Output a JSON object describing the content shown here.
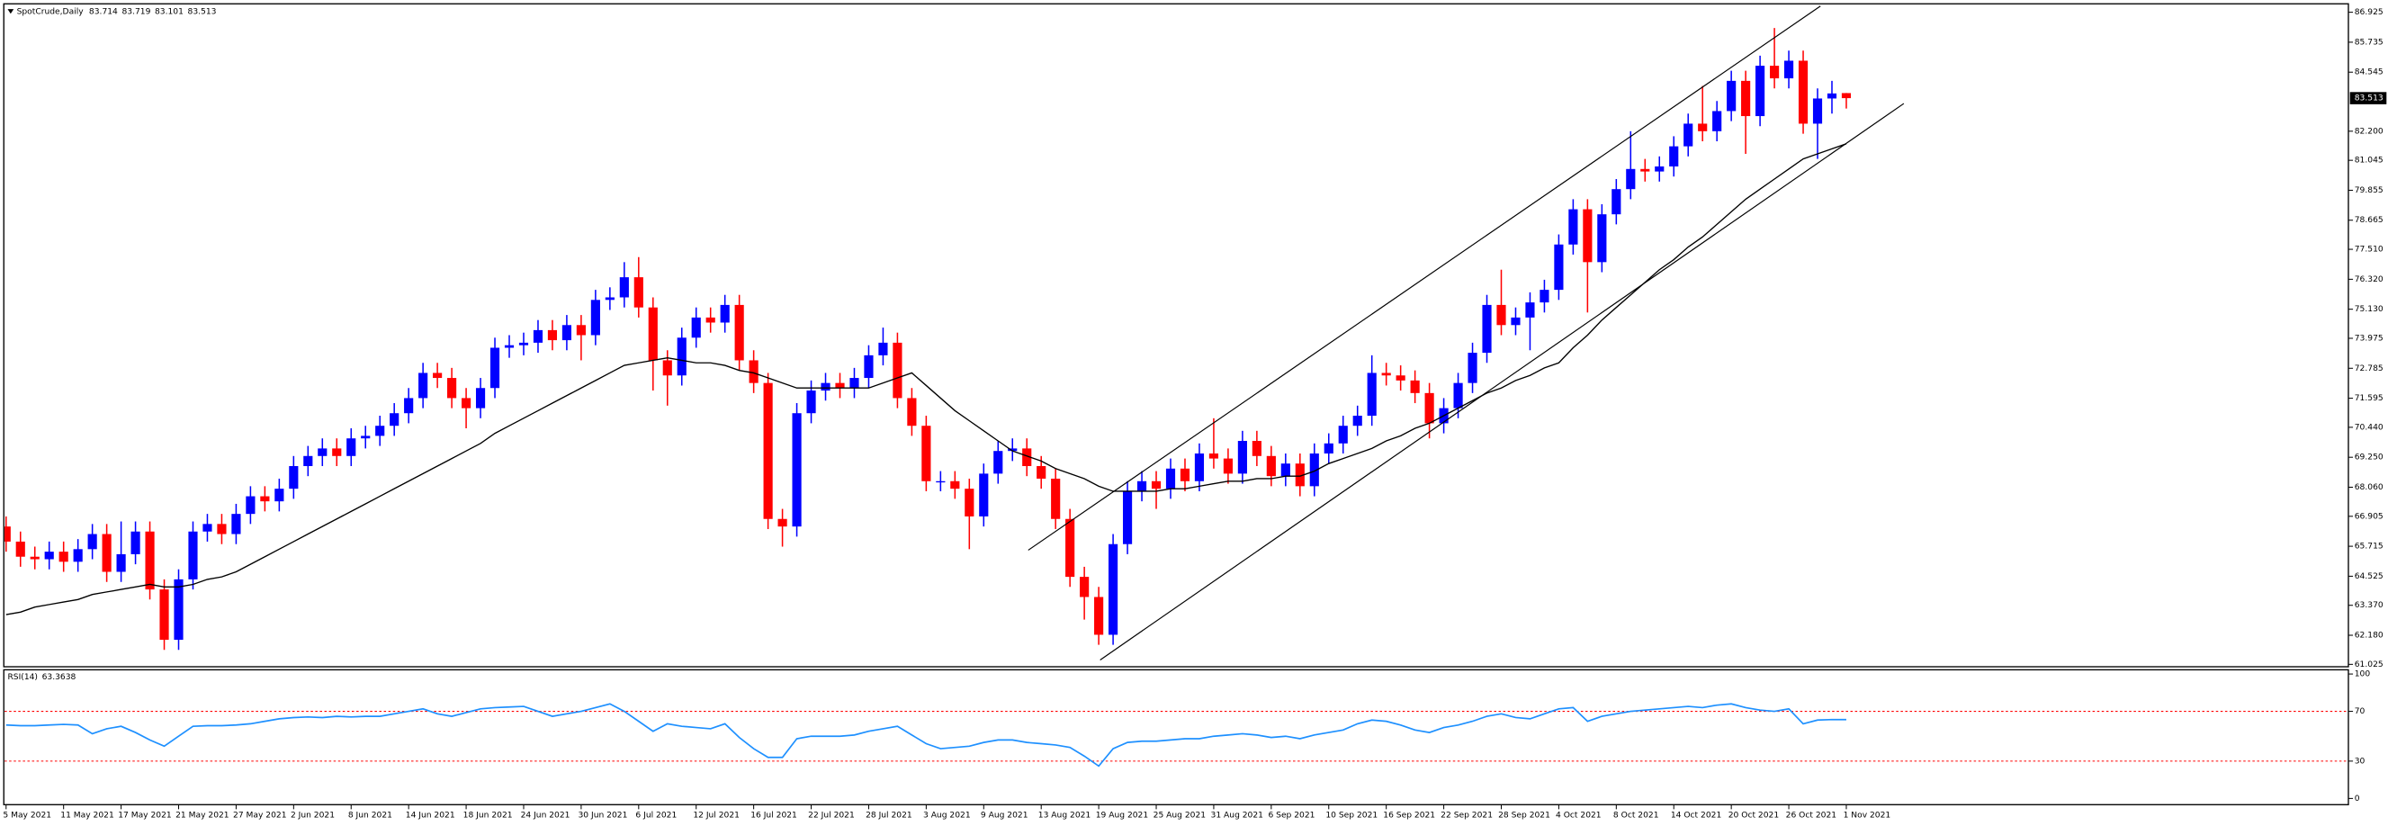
{
  "chart_data": {
    "type": "candlestick",
    "title": "SpotCrude,Daily",
    "up_color": "#0000ff",
    "down_color": "#ff0000",
    "categories": [
      "5 May 2021",
      null,
      null,
      null,
      "11 May 2021",
      null,
      null,
      null,
      "17 May 2021",
      null,
      null,
      null,
      "21 May 2021",
      null,
      null,
      null,
      "27 May 2021",
      null,
      null,
      null,
      "2 Jun 2021",
      null,
      null,
      null,
      "8 Jun 2021",
      null,
      null,
      null,
      "14 Jun 2021",
      null,
      null,
      null,
      "18 Jun 2021",
      null,
      null,
      null,
      "24 Jun 2021",
      null,
      null,
      null,
      "30 Jun 2021",
      null,
      null,
      null,
      "6 Jul 2021",
      null,
      null,
      null,
      "12 Jul 2021",
      null,
      null,
      null,
      "16 Jul 2021",
      null,
      null,
      null,
      "22 Jul 2021",
      null,
      null,
      null,
      "28 Jul 2021",
      null,
      null,
      null,
      "3 Aug 2021",
      null,
      null,
      null,
      "9 Aug 2021",
      null,
      null,
      null,
      "13 Aug 2021",
      null,
      null,
      null,
      "19 Aug 2021",
      null,
      null,
      null,
      "25 Aug 2021",
      null,
      null,
      null,
      "31 Aug 2021",
      null,
      null,
      null,
      "6 Sep 2021",
      null,
      null,
      null,
      "10 Sep 2021",
      null,
      null,
      null,
      "16 Sep 2021",
      null,
      null,
      null,
      "22 Sep 2021",
      null,
      null,
      null,
      "28 Sep 2021",
      null,
      null,
      null,
      "4 Oct 2021",
      null,
      null,
      null,
      "8 Oct 2021",
      null,
      null,
      null,
      "14 Oct 2021",
      null,
      null,
      null,
      "20 Oct 2021",
      null,
      null,
      null,
      "26 Oct 2021",
      null,
      null,
      null,
      "1 Nov 2021"
    ],
    "open": [
      66.5,
      65.9,
      65.3,
      65.2,
      65.5,
      65.1,
      65.6,
      66.2,
      64.7,
      65.4,
      66.3,
      64.0,
      62.0,
      64.4,
      66.3,
      66.6,
      66.2,
      67.0,
      67.7,
      67.5,
      68.0,
      68.9,
      69.3,
      69.6,
      69.3,
      70.0,
      70.1,
      70.5,
      71.0,
      71.6,
      72.6,
      72.4,
      71.6,
      71.2,
      72.0,
      73.6,
      73.7,
      73.8,
      74.3,
      73.9,
      74.5,
      74.1,
      75.5,
      75.6,
      76.4,
      75.2,
      73.1,
      72.5,
      74.0,
      74.8,
      74.6,
      75.3,
      73.1,
      72.2,
      66.8,
      66.5,
      71.0,
      71.9,
      72.2,
      72.0,
      72.4,
      73.3,
      73.8,
      71.6,
      70.5,
      68.3,
      68.3,
      68.0,
      66.9,
      68.6,
      69.5,
      69.6,
      68.9,
      68.4,
      66.8,
      64.5,
      63.7,
      62.2,
      65.8,
      67.9,
      68.3,
      68.0,
      68.8,
      68.3,
      69.4,
      69.2,
      68.6,
      69.9,
      69.3,
      68.5,
      69.0,
      68.1,
      69.4,
      69.8,
      70.5,
      70.9,
      72.6,
      72.5,
      72.3,
      71.8,
      70.6,
      71.2,
      72.2,
      73.4,
      75.3,
      74.5,
      74.8,
      75.4,
      75.9,
      77.7,
      79.1,
      77.0,
      78.9,
      79.9,
      80.7,
      80.6,
      80.8,
      81.6,
      82.5,
      82.2,
      83.0,
      84.2,
      82.8,
      84.8,
      84.3,
      85.0,
      82.5,
      83.5,
      83.714
    ],
    "high": [
      66.9,
      66.3,
      65.7,
      65.9,
      65.9,
      66.0,
      66.6,
      66.6,
      66.7,
      66.7,
      66.7,
      64.4,
      64.8,
      66.7,
      67.0,
      67.0,
      67.4,
      68.1,
      68.1,
      68.4,
      69.3,
      69.7,
      70.0,
      70.0,
      70.4,
      70.5,
      70.9,
      71.4,
      72.0,
      73.0,
      73.0,
      72.8,
      72.0,
      72.4,
      74.0,
      74.1,
      74.2,
      74.7,
      74.7,
      74.9,
      74.9,
      75.9,
      76.0,
      77.0,
      77.2,
      75.6,
      73.5,
      74.4,
      75.2,
      75.2,
      75.7,
      75.7,
      73.5,
      72.6,
      67.2,
      71.4,
      72.3,
      72.6,
      72.6,
      72.8,
      73.7,
      74.4,
      74.2,
      72.0,
      70.9,
      68.7,
      68.7,
      68.4,
      69.0,
      69.9,
      70.0,
      70.0,
      69.3,
      68.8,
      67.2,
      64.9,
      64.1,
      66.2,
      68.3,
      68.7,
      68.7,
      69.2,
      69.2,
      69.8,
      70.8,
      69.6,
      70.3,
      70.3,
      69.7,
      69.4,
      69.4,
      69.8,
      70.2,
      70.9,
      71.3,
      73.3,
      73.0,
      72.9,
      72.7,
      72.2,
      71.6,
      72.6,
      73.8,
      75.7,
      76.7,
      75.2,
      75.8,
      76.3,
      78.1,
      79.5,
      79.5,
      79.3,
      80.3,
      82.2,
      81.1,
      81.2,
      82.0,
      82.9,
      84.0,
      83.4,
      84.6,
      84.6,
      85.2,
      86.3,
      85.4,
      85.4,
      83.9,
      84.2,
      83.719
    ],
    "low": [
      65.5,
      64.9,
      64.8,
      64.8,
      64.7,
      64.7,
      65.2,
      64.3,
      64.3,
      65.0,
      63.6,
      61.6,
      61.6,
      64.0,
      65.9,
      65.8,
      65.8,
      66.6,
      67.1,
      67.1,
      67.6,
      68.5,
      68.9,
      68.9,
      68.9,
      69.6,
      69.7,
      70.1,
      70.6,
      71.2,
      72.0,
      71.2,
      70.4,
      70.8,
      71.6,
      73.2,
      73.3,
      73.4,
      73.5,
      73.5,
      73.1,
      73.7,
      75.1,
      75.2,
      74.8,
      71.9,
      71.3,
      72.1,
      73.6,
      74.2,
      74.2,
      72.7,
      71.8,
      66.4,
      65.7,
      66.1,
      70.6,
      71.5,
      71.6,
      71.6,
      72.0,
      72.9,
      71.2,
      70.1,
      67.9,
      67.9,
      67.6,
      65.6,
      66.5,
      68.2,
      69.1,
      68.5,
      68.0,
      66.4,
      64.1,
      62.8,
      61.8,
      61.8,
      65.4,
      67.5,
      67.2,
      67.6,
      67.9,
      67.9,
      68.8,
      68.2,
      68.2,
      68.9,
      68.1,
      68.1,
      67.7,
      67.7,
      69.0,
      69.4,
      70.1,
      70.5,
      72.1,
      71.9,
      71.4,
      70.0,
      70.2,
      70.8,
      71.8,
      73.0,
      74.1,
      74.1,
      73.5,
      75.0,
      75.5,
      77.3,
      75.0,
      76.6,
      78.5,
      79.5,
      80.2,
      80.2,
      80.4,
      81.2,
      81.8,
      81.8,
      82.6,
      81.3,
      82.4,
      83.9,
      83.9,
      82.1,
      81.1,
      82.9,
      83.101
    ],
    "close": [
      65.9,
      65.3,
      65.2,
      65.5,
      65.1,
      65.6,
      66.2,
      64.7,
      65.4,
      66.3,
      64.0,
      62.0,
      64.4,
      66.3,
      66.6,
      66.2,
      67.0,
      67.7,
      67.5,
      68.0,
      68.9,
      69.3,
      69.6,
      69.3,
      70.0,
      70.1,
      70.5,
      71.0,
      71.6,
      72.6,
      72.4,
      71.6,
      71.2,
      72.0,
      73.6,
      73.7,
      73.8,
      74.3,
      73.9,
      74.5,
      74.1,
      75.5,
      75.6,
      76.4,
      75.2,
      73.1,
      72.5,
      74.0,
      74.8,
      74.6,
      75.3,
      73.1,
      72.2,
      66.8,
      66.5,
      71.0,
      71.9,
      72.2,
      72.0,
      72.4,
      73.3,
      73.8,
      71.6,
      70.5,
      68.3,
      68.3,
      68.0,
      66.9,
      68.6,
      69.5,
      69.6,
      68.9,
      68.4,
      66.8,
      64.5,
      63.7,
      62.2,
      65.8,
      67.9,
      68.3,
      68.0,
      68.8,
      68.3,
      69.4,
      69.2,
      68.6,
      69.9,
      69.3,
      68.5,
      69.0,
      68.1,
      69.4,
      69.8,
      70.5,
      70.9,
      72.6,
      72.5,
      72.3,
      71.8,
      70.6,
      71.2,
      72.2,
      73.4,
      75.3,
      74.5,
      74.8,
      75.4,
      75.9,
      77.7,
      79.1,
      77.0,
      78.9,
      79.9,
      80.7,
      80.6,
      80.8,
      81.6,
      82.5,
      82.2,
      83.0,
      84.2,
      82.8,
      84.8,
      84.3,
      85.0,
      82.5,
      83.5,
      83.7,
      83.513
    ],
    "ylim": [
      60.96,
      87.23
    ],
    "yticks": [
      86.925,
      85.735,
      84.545,
      {
        "value": 82.2,
        "label": "82.200"
      },
      81.045,
      79.855,
      78.665,
      {
        "value": 77.51,
        "label": "77.510"
      },
      {
        "value": 76.32,
        "label": "76.320"
      },
      {
        "value": 75.13,
        "label": "75.130"
      },
      73.975,
      72.785,
      71.595,
      {
        "value": 70.44,
        "label": "70.440"
      },
      {
        "value": 69.25,
        "label": "69.250"
      },
      {
        "value": 68.06,
        "label": "68.060"
      },
      66.905,
      65.715,
      64.525,
      {
        "value": 63.37,
        "label": "63.370"
      },
      {
        "value": 62.18,
        "label": "62.180"
      },
      61.025
    ],
    "ma": {
      "color": "#000000",
      "values": [
        63.0,
        63.1,
        63.3,
        63.4,
        63.5,
        63.6,
        63.8,
        63.9,
        64.0,
        64.1,
        64.2,
        64.1,
        64.1,
        64.2,
        64.4,
        64.5,
        64.7,
        65.0,
        65.3,
        65.6,
        65.9,
        66.2,
        66.5,
        66.8,
        67.1,
        67.4,
        67.7,
        68.0,
        68.3,
        68.6,
        68.9,
        69.2,
        69.5,
        69.8,
        70.2,
        70.5,
        70.8,
        71.1,
        71.4,
        71.7,
        72.0,
        72.3,
        72.6,
        72.9,
        73.0,
        73.1,
        73.2,
        73.1,
        73.0,
        73.0,
        72.9,
        72.7,
        72.6,
        72.4,
        72.2,
        72.0,
        72.0,
        72.0,
        72.0,
        72.0,
        72.0,
        72.2,
        72.4,
        72.6,
        72.1,
        71.6,
        71.1,
        70.7,
        70.3,
        69.9,
        69.5,
        69.3,
        69.1,
        68.8,
        68.6,
        68.4,
        68.1,
        67.9,
        67.9,
        67.9,
        67.9,
        68.0,
        68.0,
        68.1,
        68.2,
        68.3,
        68.3,
        68.4,
        68.4,
        68.5,
        68.5,
        68.7,
        69.0,
        69.2,
        69.4,
        69.6,
        69.9,
        70.1,
        70.4,
        70.6,
        70.9,
        71.2,
        71.5,
        71.8,
        72.0,
        72.3,
        72.5,
        72.8,
        73.0,
        73.6,
        74.1,
        74.7,
        75.2,
        75.7,
        76.2,
        76.7,
        77.1,
        77.6,
        78.0,
        78.5,
        79.0,
        79.5,
        79.9,
        80.3,
        80.7,
        81.1,
        81.3,
        81.5,
        81.7
      ]
    },
    "trendlines": [
      {
        "color": "#000000",
        "x": [
          71.1,
          126.2
        ],
        "y": [
          65.56,
          87.17
        ]
      },
      {
        "color": "#000000",
        "x": [
          76.1,
          132.0
        ],
        "y": [
          61.2,
          83.3
        ]
      }
    ],
    "rsi": {
      "name": "RSI(14)",
      "color": "#1e90ff",
      "values": [
        59,
        58.5,
        58.5,
        59,
        59.5,
        59,
        52,
        56,
        58,
        53,
        47,
        42,
        50,
        58,
        58.5,
        58.5,
        59,
        60,
        62,
        64,
        65,
        65.5,
        65,
        66,
        65.5,
        66,
        66,
        68,
        70,
        72,
        68,
        66,
        69,
        72,
        73,
        73.5,
        74,
        70,
        66,
        68,
        70,
        73,
        76,
        70,
        62,
        54,
        60,
        58,
        57,
        56,
        60,
        49,
        40,
        33,
        33,
        48,
        50,
        50,
        50,
        51,
        54,
        56,
        58,
        51,
        44,
        40,
        41,
        42,
        45,
        47,
        47,
        45,
        44,
        43,
        41,
        34,
        26,
        40,
        45,
        46,
        46,
        47,
        48,
        48,
        50,
        51,
        52,
        51,
        49,
        50,
        48,
        51,
        53,
        55,
        60,
        63,
        62,
        59,
        55,
        53,
        57,
        59,
        62,
        66,
        68,
        65,
        64,
        68,
        72,
        73,
        62,
        66,
        68,
        70,
        71,
        72,
        73,
        74,
        73,
        75,
        76,
        73,
        71,
        70,
        72,
        60,
        63,
        63.4,
        63.3638
      ],
      "ylim": [
        -5,
        104
      ],
      "yticks": [
        100,
        70,
        30,
        0
      ],
      "levels": [
        70,
        30
      ],
      "level_color": "#ff0000"
    }
  }
}
